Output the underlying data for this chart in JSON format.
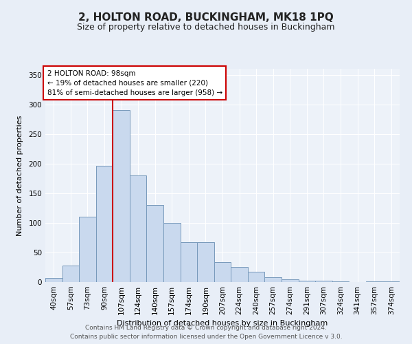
{
  "title": "2, HOLTON ROAD, BUCKINGHAM, MK18 1PQ",
  "subtitle": "Size of property relative to detached houses in Buckingham",
  "xlabel": "Distribution of detached houses by size in Buckingham",
  "ylabel": "Number of detached properties",
  "categories": [
    "40sqm",
    "57sqm",
    "73sqm",
    "90sqm",
    "107sqm",
    "124sqm",
    "140sqm",
    "157sqm",
    "174sqm",
    "190sqm",
    "207sqm",
    "224sqm",
    "240sqm",
    "257sqm",
    "274sqm",
    "291sqm",
    "307sqm",
    "324sqm",
    "341sqm",
    "357sqm",
    "374sqm"
  ],
  "bar_values": [
    7,
    28,
    110,
    196,
    290,
    180,
    130,
    100,
    67,
    67,
    34,
    26,
    17,
    8,
    5,
    2,
    2,
    1,
    0,
    1,
    1
  ],
  "bar_color": "#c9d9ee",
  "bar_edge_color": "#7799bb",
  "vline_x": 3.5,
  "vline_color": "#cc0000",
  "annotation_title": "2 HOLTON ROAD: 98sqm",
  "annotation_line1": "← 19% of detached houses are smaller (220)",
  "annotation_line2": "81% of semi-detached houses are larger (958) →",
  "annotation_box_color": "#cc0000",
  "ylim": [
    0,
    360
  ],
  "yticks": [
    0,
    50,
    100,
    150,
    200,
    250,
    300,
    350
  ],
  "footer1": "Contains HM Land Registry data © Crown copyright and database right 2024.",
  "footer2": "Contains public sector information licensed under the Open Government Licence v 3.0.",
  "bg_color": "#e8eef7",
  "plot_bg_color": "#edf2f9",
  "grid_color": "#ffffff",
  "title_fontsize": 11,
  "subtitle_fontsize": 9,
  "axis_label_fontsize": 8,
  "tick_fontsize": 7.5,
  "footer_fontsize": 6.5
}
